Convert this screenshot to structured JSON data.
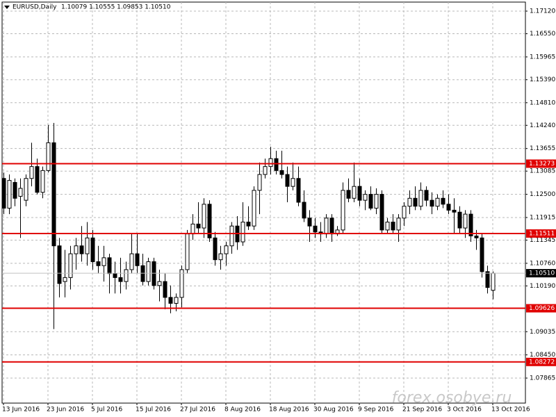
{
  "chart_data": {
    "type": "candlestick",
    "title": "EURUSD,Daily",
    "subtitle": "1.10079 1.10555 1.09853 1.10510",
    "watermark": "forex.osobye.ru",
    "x": [
      0,
      1,
      2,
      3,
      4,
      5,
      6,
      7,
      8,
      9,
      10,
      11,
      12,
      13,
      14,
      15,
      16,
      17,
      18,
      19,
      20,
      21,
      22,
      23,
      24,
      25,
      26,
      27,
      28,
      29,
      30,
      31,
      32,
      33,
      34,
      35,
      36,
      37,
      38,
      39,
      40,
      41,
      42,
      43,
      44,
      45,
      46,
      47,
      48,
      49,
      50,
      51,
      52,
      53,
      54,
      55,
      56,
      57,
      58,
      59,
      60,
      61,
      62,
      63,
      64,
      65,
      66,
      67,
      68,
      69,
      70,
      71,
      72,
      73,
      74,
      75,
      76,
      77,
      78,
      79,
      80,
      81,
      82,
      83,
      84,
      85,
      86,
      87,
      88
    ],
    "open": [
      1.129,
      1.1215,
      1.128,
      1.1245,
      1.1235,
      1.129,
      1.132,
      1.1255,
      1.131,
      1.138,
      1.112,
      1.103,
      1.104,
      1.11,
      1.112,
      1.11,
      1.114,
      1.108,
      1.107,
      1.109,
      1.105,
      1.104,
      1.103,
      1.106,
      1.11,
      1.107,
      1.103,
      1.108,
      1.102,
      1.103,
      1.099,
      1.0975,
      1.099,
      1.106,
      1.115,
      1.1175,
      1.1165,
      1.1225,
      1.114,
      1.1085,
      1.11,
      1.112,
      1.117,
      1.113,
      1.118,
      1.117,
      1.126,
      1.13,
      1.132,
      1.134,
      1.131,
      1.13,
      1.127,
      1.129,
      1.123,
      1.119,
      1.117,
      1.1155,
      1.115,
      1.119,
      1.115,
      1.116,
      1.126,
      1.124,
      1.127,
      1.1235,
      1.125,
      1.1215,
      1.125,
      1.116,
      1.118,
      1.116,
      1.119,
      1.122,
      1.124,
      1.122,
      1.126,
      1.1235,
      1.122,
      1.124,
      1.1225,
      1.121,
      1.1205,
      1.1165,
      1.12,
      1.1145,
      1.114,
      1.1055,
      1.10079
    ],
    "high": [
      1.1305,
      1.13,
      1.129,
      1.129,
      1.13,
      1.138,
      1.134,
      1.132,
      1.1425,
      1.143,
      1.114,
      1.111,
      1.112,
      1.114,
      1.117,
      1.118,
      1.116,
      1.112,
      1.112,
      1.11,
      1.108,
      1.109,
      1.108,
      1.115,
      1.115,
      1.11,
      1.109,
      1.109,
      1.106,
      1.105,
      1.102,
      1.1,
      1.107,
      1.116,
      1.12,
      1.123,
      1.124,
      1.1235,
      1.1155,
      1.112,
      1.113,
      1.118,
      1.1195,
      1.123,
      1.122,
      1.127,
      1.133,
      1.134,
      1.137,
      1.136,
      1.136,
      1.132,
      1.133,
      1.132,
      1.126,
      1.121,
      1.119,
      1.118,
      1.12,
      1.12,
      1.117,
      1.128,
      1.129,
      1.133,
      1.129,
      1.126,
      1.127,
      1.1265,
      1.126,
      1.119,
      1.12,
      1.12,
      1.123,
      1.126,
      1.127,
      1.128,
      1.127,
      1.1255,
      1.125,
      1.126,
      1.125,
      1.124,
      1.122,
      1.121,
      1.121,
      1.116,
      1.115,
      1.107,
      1.10555
    ],
    "low": [
      1.12,
      1.12,
      1.122,
      1.114,
      1.122,
      1.127,
      1.125,
      1.124,
      1.1305,
      1.091,
      1.099,
      1.099,
      1.101,
      1.106,
      1.108,
      1.107,
      1.106,
      1.105,
      1.103,
      1.1,
      1.1,
      1.1,
      1.101,
      1.105,
      1.105,
      1.102,
      1.102,
      1.101,
      1.098,
      1.096,
      1.095,
      1.0955,
      1.0965,
      1.105,
      1.1135,
      1.115,
      1.114,
      1.113,
      1.107,
      1.106,
      1.107,
      1.11,
      1.111,
      1.112,
      1.116,
      1.116,
      1.12,
      1.129,
      1.13,
      1.13,
      1.129,
      1.123,
      1.126,
      1.122,
      1.118,
      1.113,
      1.114,
      1.113,
      1.114,
      1.113,
      1.1145,
      1.115,
      1.123,
      1.123,
      1.122,
      1.121,
      1.121,
      1.12,
      1.115,
      1.115,
      1.115,
      1.113,
      1.117,
      1.12,
      1.121,
      1.121,
      1.122,
      1.12,
      1.121,
      1.1215,
      1.12,
      1.115,
      1.115,
      1.114,
      1.113,
      1.111,
      1.104,
      1.1,
      1.09853
    ],
    "close": [
      1.1215,
      1.1285,
      1.124,
      1.1265,
      1.129,
      1.132,
      1.1255,
      1.131,
      1.138,
      1.112,
      1.1025,
      1.104,
      1.11,
      1.112,
      1.11,
      1.114,
      1.108,
      1.107,
      1.109,
      1.105,
      1.104,
      1.103,
      1.106,
      1.11,
      1.107,
      1.103,
      1.108,
      1.102,
      1.103,
      1.099,
      1.0975,
      1.099,
      1.106,
      1.115,
      1.1175,
      1.1165,
      1.1225,
      1.114,
      1.1085,
      1.11,
      1.112,
      1.117,
      1.113,
      1.118,
      1.117,
      1.126,
      1.13,
      1.132,
      1.134,
      1.131,
      1.13,
      1.127,
      1.129,
      1.123,
      1.119,
      1.117,
      1.1155,
      1.115,
      1.119,
      1.115,
      1.116,
      1.126,
      1.124,
      1.127,
      1.1235,
      1.125,
      1.1215,
      1.125,
      1.116,
      1.118,
      1.116,
      1.119,
      1.122,
      1.124,
      1.122,
      1.126,
      1.1235,
      1.122,
      1.124,
      1.1225,
      1.121,
      1.1205,
      1.1165,
      1.12,
      1.1145,
      1.114,
      1.1055,
      1.1015,
      1.1051
    ],
    "xlim": [
      -0.25,
      93.875
    ],
    "xticks": [
      {
        "value": 0,
        "label": "13 Jun 2016"
      },
      {
        "value": 8,
        "label": "23 Jun 2016"
      },
      {
        "value": 16,
        "label": "5 Jul 2016"
      },
      {
        "value": 24,
        "label": "15 Jul 2016"
      },
      {
        "value": 32,
        "label": "27 Jul 2016"
      },
      {
        "value": 40,
        "label": "8 Aug 2016"
      },
      {
        "value": 48,
        "label": "18 Aug 2016"
      },
      {
        "value": 56,
        "label": "30 Aug 2016"
      },
      {
        "value": 64,
        "label": "9 Sep 2016"
      },
      {
        "value": 72,
        "label": "21 Sep 2016"
      },
      {
        "value": 80,
        "label": "3 Oct 2016"
      },
      {
        "value": 88,
        "label": "13 Oct 2016"
      }
    ],
    "ylim": [
      1.07234,
      1.17348
    ],
    "yticks": [
      {
        "value": 1.1712,
        "label": "1.17120"
      },
      {
        "value": 1.1655,
        "label": "1.16550"
      },
      1.15965,
      {
        "value": 1.1539,
        "label": "1.15390"
      },
      {
        "value": 1.1481,
        "label": "1.14810"
      },
      {
        "value": 1.1424,
        "label": "1.14240"
      },
      1.13655,
      1.13085,
      {
        "value": 1.125,
        "label": "1.12500"
      },
      1.11915,
      1.11345,
      {
        "value": 1.1076,
        "label": "1.10760"
      },
      {
        "value": 1.1019,
        "label": "1.10190"
      },
      1.09035,
      {
        "value": 1.0845,
        "label": "1.08450"
      },
      1.07865
    ],
    "levels": [
      1.13273,
      1.11511,
      1.09626,
      1.08272
    ],
    "level_color": "#e00000",
    "current_price": {
      "value": 1.1051,
      "label": "1.10510"
    },
    "grid": true
  }
}
